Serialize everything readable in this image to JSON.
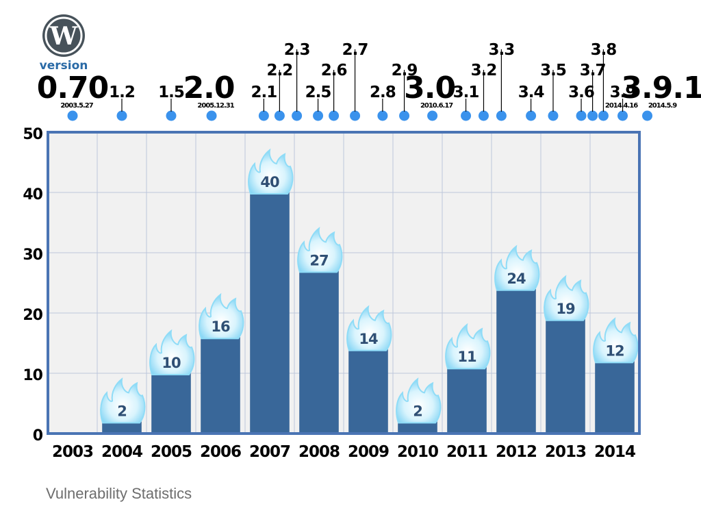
{
  "logo": {
    "icon": "wordpress-logo-icon",
    "caption": "version",
    "color": "#47525a",
    "caption_color": "#2a6aa6"
  },
  "footer": {
    "text": "Vulnerability Statistics"
  },
  "colors": {
    "bar": "#396799",
    "plot_bg": "#f1f1f1",
    "frame": "#4a74b4",
    "grid": "#bdc6dc",
    "dot": "#3a92ec",
    "flame": "#8fdcf7",
    "bar_label": "#2f4f74"
  },
  "chart_data": {
    "type": "bar",
    "title": "",
    "xlabel": "",
    "ylabel": "",
    "categories": [
      "2003",
      "2004",
      "2005",
      "2006",
      "2007",
      "2008",
      "2009",
      "2010",
      "2011",
      "2012",
      "2013",
      "2014"
    ],
    "values": [
      0,
      2,
      10,
      16,
      40,
      27,
      14,
      2,
      11,
      24,
      19,
      12
    ],
    "value_labels": [
      "",
      "2",
      "10",
      "16",
      "40",
      "27",
      "14",
      "2",
      "11",
      "24",
      "19",
      "12"
    ],
    "ylim": [
      0,
      50
    ],
    "yticks": [
      "0",
      "10",
      "20",
      "30",
      "40",
      "50"
    ],
    "grid": true,
    "legend": "none",
    "bar_decoration": "flame-icon",
    "versions": [
      {
        "label": "0.70",
        "date": "2003.5.27",
        "x": 2003.0,
        "major": true
      },
      {
        "label": "1.2",
        "x": 2004.0
      },
      {
        "label": "1.5",
        "x": 2005.0
      },
      {
        "label": "2.0",
        "date": "2005.12.31",
        "x": 2005.82,
        "major": true
      },
      {
        "label": "2.1",
        "x": 2006.88
      },
      {
        "label": "2.2",
        "x": 2007.2
      },
      {
        "label": "2.3",
        "x": 2007.55
      },
      {
        "label": "2.5",
        "x": 2007.98
      },
      {
        "label": "2.6",
        "x": 2008.3
      },
      {
        "label": "2.7",
        "x": 2008.73
      },
      {
        "label": "2.8",
        "x": 2009.29
      },
      {
        "label": "2.9",
        "x": 2009.73
      },
      {
        "label": "3.0",
        "date": "2010.6.17",
        "x": 2010.3,
        "major": true
      },
      {
        "label": "3.1",
        "x": 2010.98
      },
      {
        "label": "3.2",
        "x": 2011.34
      },
      {
        "label": "3.3",
        "x": 2011.7
      },
      {
        "label": "3.4",
        "x": 2012.3
      },
      {
        "label": "3.5",
        "x": 2012.75
      },
      {
        "label": "3.6",
        "x": 2013.32
      },
      {
        "label": "3.7",
        "x": 2013.55
      },
      {
        "label": "3.8",
        "x": 2013.77
      },
      {
        "label": "3.9",
        "date": "2014.4.16",
        "x": 2014.16
      },
      {
        "label": "3.9.1",
        "date": "2014.5.9",
        "x": 2014.66,
        "major": true
      }
    ]
  }
}
